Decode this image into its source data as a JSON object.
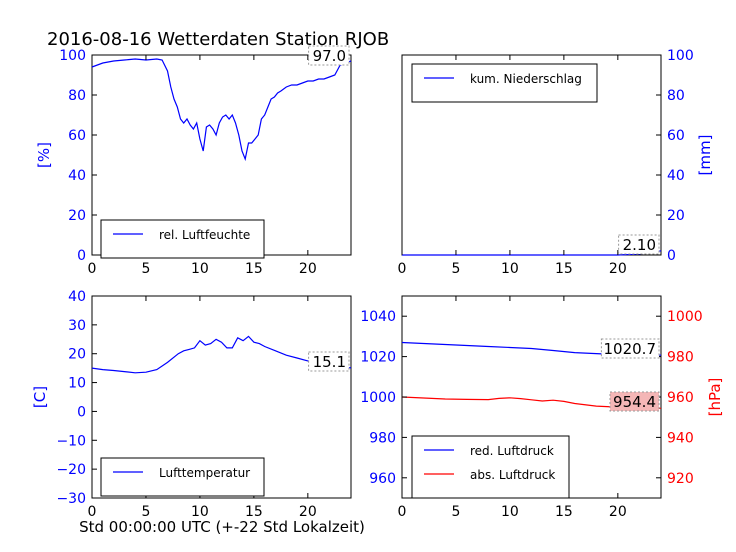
{
  "figure": {
    "title": "2016-08-16 Wetterdaten Station RJOB",
    "xlabel": "Std 00:00:00 UTC (+-22 Std Lokalzeit)"
  },
  "colors": {
    "blue": "#0000ff",
    "red": "#ff0000",
    "black": "#000000",
    "label_bg_red": "#f4b6b6"
  },
  "chart_data": [
    {
      "type": "line",
      "panel": "top-left",
      "ylabel": "[%]",
      "xlim": [
        0,
        24
      ],
      "ylim": [
        0,
        100
      ],
      "xticks": [
        "0",
        "5",
        "10",
        "15",
        "20"
      ],
      "yticks": [
        "0",
        "20",
        "40",
        "60",
        "80",
        "100"
      ],
      "legend": "lower-left",
      "annotation": "97.0",
      "series": [
        {
          "name": "rel. Luftfeuchte",
          "color": "#0000ff",
          "x": [
            0,
            1,
            2,
            3,
            4,
            5,
            6,
            6.5,
            7,
            7.3,
            7.6,
            7.9,
            8.2,
            8.5,
            8.8,
            9.1,
            9.4,
            9.7,
            10,
            10.3,
            10.6,
            10.9,
            11.2,
            11.5,
            11.8,
            12.1,
            12.4,
            12.7,
            13,
            13.3,
            13.6,
            13.9,
            14.2,
            14.5,
            14.8,
            15.1,
            15.4,
            15.7,
            16,
            16.3,
            16.6,
            16.9,
            17.2,
            17.5,
            18,
            18.5,
            19,
            19.5,
            20,
            20.5,
            21,
            21.5,
            22,
            22.5,
            23,
            23.5,
            24
          ],
          "y": [
            94,
            96,
            97,
            97.5,
            98,
            97.5,
            98,
            97.5,
            92,
            84,
            78,
            74,
            68,
            66,
            68,
            65,
            63,
            66,
            58,
            52,
            64,
            65,
            63,
            60,
            66,
            69,
            70,
            68,
            70,
            66,
            60,
            52,
            48,
            56,
            56,
            58,
            60,
            68,
            70,
            74,
            78,
            79,
            81,
            82,
            84,
            85,
            85,
            86,
            87,
            87,
            88,
            88,
            89,
            90,
            95,
            96,
            97
          ]
        }
      ]
    },
    {
      "type": "line",
      "panel": "top-right",
      "ylabel": "[mm]",
      "xlim": [
        0,
        24
      ],
      "ylim": [
        0,
        100
      ],
      "xticks": [
        "0",
        "5",
        "10",
        "15",
        "20"
      ],
      "yticks": [
        "0",
        "20",
        "40",
        "60",
        "80",
        "100"
      ],
      "legend": "upper-left",
      "annotation": "2.10",
      "series": [
        {
          "name": "kum. Niederschlag",
          "color": "#0000ff",
          "x": [
            0,
            4,
            8,
            12,
            16,
            20,
            22,
            24
          ],
          "y": [
            0,
            0,
            0,
            0,
            0,
            0,
            0.5,
            2.1
          ]
        }
      ]
    },
    {
      "type": "line",
      "panel": "bottom-left",
      "ylabel": "[C]",
      "xlim": [
        0,
        24
      ],
      "ylim": [
        -30,
        40
      ],
      "xticks": [
        "0",
        "5",
        "10",
        "15",
        "20"
      ],
      "yticks": [
        "−30",
        "−20",
        "−10",
        "0",
        "10",
        "20",
        "30",
        "40"
      ],
      "legend": "lower-left",
      "annotation": "15.1",
      "series": [
        {
          "name": "Lufttemperatur",
          "color": "#0000ff",
          "x": [
            0,
            1,
            2,
            3,
            4,
            5,
            6,
            7,
            8,
            8.5,
            9,
            9.5,
            10,
            10.5,
            11,
            11.5,
            12,
            12.5,
            13,
            13.5,
            14,
            14.5,
            15,
            15.5,
            16,
            17,
            18,
            19,
            20,
            21,
            22,
            22.5,
            23,
            23.5,
            24
          ],
          "y": [
            15,
            14.5,
            14.2,
            13.8,
            13.4,
            13.6,
            14.5,
            17,
            20,
            21,
            21.5,
            22,
            24.5,
            23,
            23.5,
            25,
            24,
            22,
            22,
            25.5,
            24.5,
            26,
            24,
            23.5,
            22.5,
            21,
            19.5,
            18.5,
            17.5,
            17,
            16.5,
            16,
            15.8,
            15.3,
            15.1
          ]
        }
      ]
    },
    {
      "type": "line",
      "panel": "bottom-right",
      "ylabel": "[hPa]",
      "xlim": [
        0,
        24
      ],
      "ylim_left": [
        950,
        1050
      ],
      "ylim_right": [
        910,
        1010
      ],
      "xticks": [
        "0",
        "5",
        "10",
        "15",
        "20"
      ],
      "yticks_left": [
        "960",
        "980",
        "1000",
        "1020",
        "1040"
      ],
      "yticks_right": [
        "920",
        "940",
        "960",
        "980",
        "1000"
      ],
      "legend": "lower-left",
      "annotations": [
        "1020.7",
        "954.4"
      ],
      "series": [
        {
          "name": "red. Luftdruck",
          "color": "#0000ff",
          "axis": "left",
          "x": [
            0,
            2,
            4,
            6,
            8,
            10,
            12,
            14,
            16,
            18,
            20,
            22,
            24
          ],
          "y": [
            1027,
            1026.5,
            1026,
            1025.5,
            1025,
            1024.5,
            1024,
            1023,
            1022,
            1021.5,
            1021,
            1020.8,
            1020.7
          ]
        },
        {
          "name": "abs. Luftdruck",
          "color": "#ff0000",
          "axis": "right",
          "x": [
            0,
            2,
            4,
            6,
            8,
            9,
            10,
            11,
            12,
            13,
            14,
            15,
            16,
            18,
            20,
            22,
            24
          ],
          "y": [
            960,
            959.5,
            959,
            958.8,
            958.7,
            959.3,
            959.6,
            959.2,
            958.6,
            958,
            958.4,
            957.8,
            956.8,
            955.5,
            955,
            954.6,
            954.4
          ]
        }
      ]
    }
  ]
}
